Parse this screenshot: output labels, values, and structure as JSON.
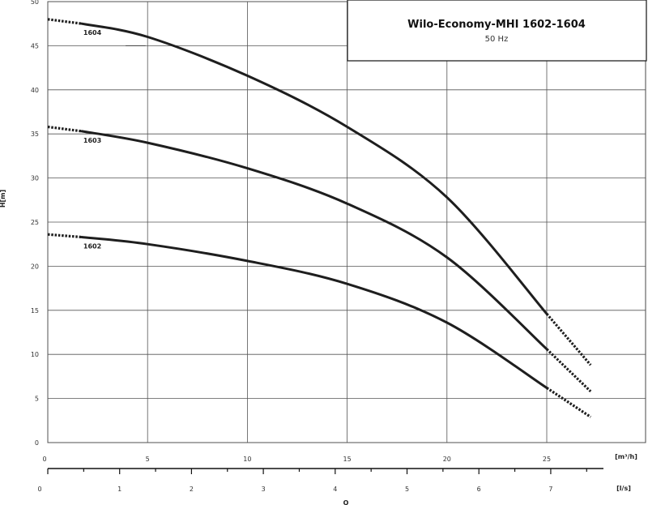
{
  "chart_data": {
    "type": "line",
    "title": "Wilo-Economy-MHI 1602-1604",
    "subtitle": "50 Hz",
    "xlabel": "Q",
    "ylabel": "H[m]",
    "x_unit": "[m³/h]",
    "x2_unit": "[l/s]",
    "xlim": [
      0,
      28.7
    ],
    "ylim": [
      0,
      50
    ],
    "x_ticks": [
      0,
      5,
      10,
      15,
      20,
      25
    ],
    "y_ticks": [
      0,
      5,
      10,
      15,
      20,
      25,
      30,
      35,
      40,
      45,
      50
    ],
    "x2_ticks": [
      0,
      1,
      2,
      3,
      4,
      5,
      6,
      7
    ],
    "grid": true,
    "series": [
      {
        "name": "1604",
        "solid": [
          [
            1.7,
            47.5
          ],
          [
            5,
            46.0
          ],
          [
            10,
            41.6
          ],
          [
            15,
            35.8
          ],
          [
            20,
            27.8
          ],
          [
            25,
            14.6
          ]
        ],
        "dashed_start": [
          [
            0,
            48.0
          ],
          [
            1.7,
            47.5
          ]
        ],
        "dashed_end": [
          [
            25,
            14.6
          ],
          [
            27.2,
            8.8
          ]
        ]
      },
      {
        "name": "1603",
        "solid": [
          [
            1.7,
            35.3
          ],
          [
            5,
            34.0
          ],
          [
            10,
            31.1
          ],
          [
            15,
            27.1
          ],
          [
            20,
            21.0
          ],
          [
            25,
            10.6
          ]
        ],
        "dashed_start": [
          [
            0,
            35.8
          ],
          [
            1.7,
            35.3
          ]
        ],
        "dashed_end": [
          [
            25,
            10.6
          ],
          [
            27.2,
            5.8
          ]
        ]
      },
      {
        "name": "1602",
        "solid": [
          [
            1.7,
            23.3
          ],
          [
            5,
            22.5
          ],
          [
            10,
            20.6
          ],
          [
            15,
            18.0
          ],
          [
            20,
            13.6
          ],
          [
            25,
            6.2
          ]
        ],
        "dashed_start": [
          [
            0,
            23.6
          ],
          [
            1.7,
            23.3
          ]
        ],
        "dashed_end": [
          [
            25,
            6.2
          ],
          [
            27.2,
            2.9
          ]
        ]
      }
    ]
  }
}
